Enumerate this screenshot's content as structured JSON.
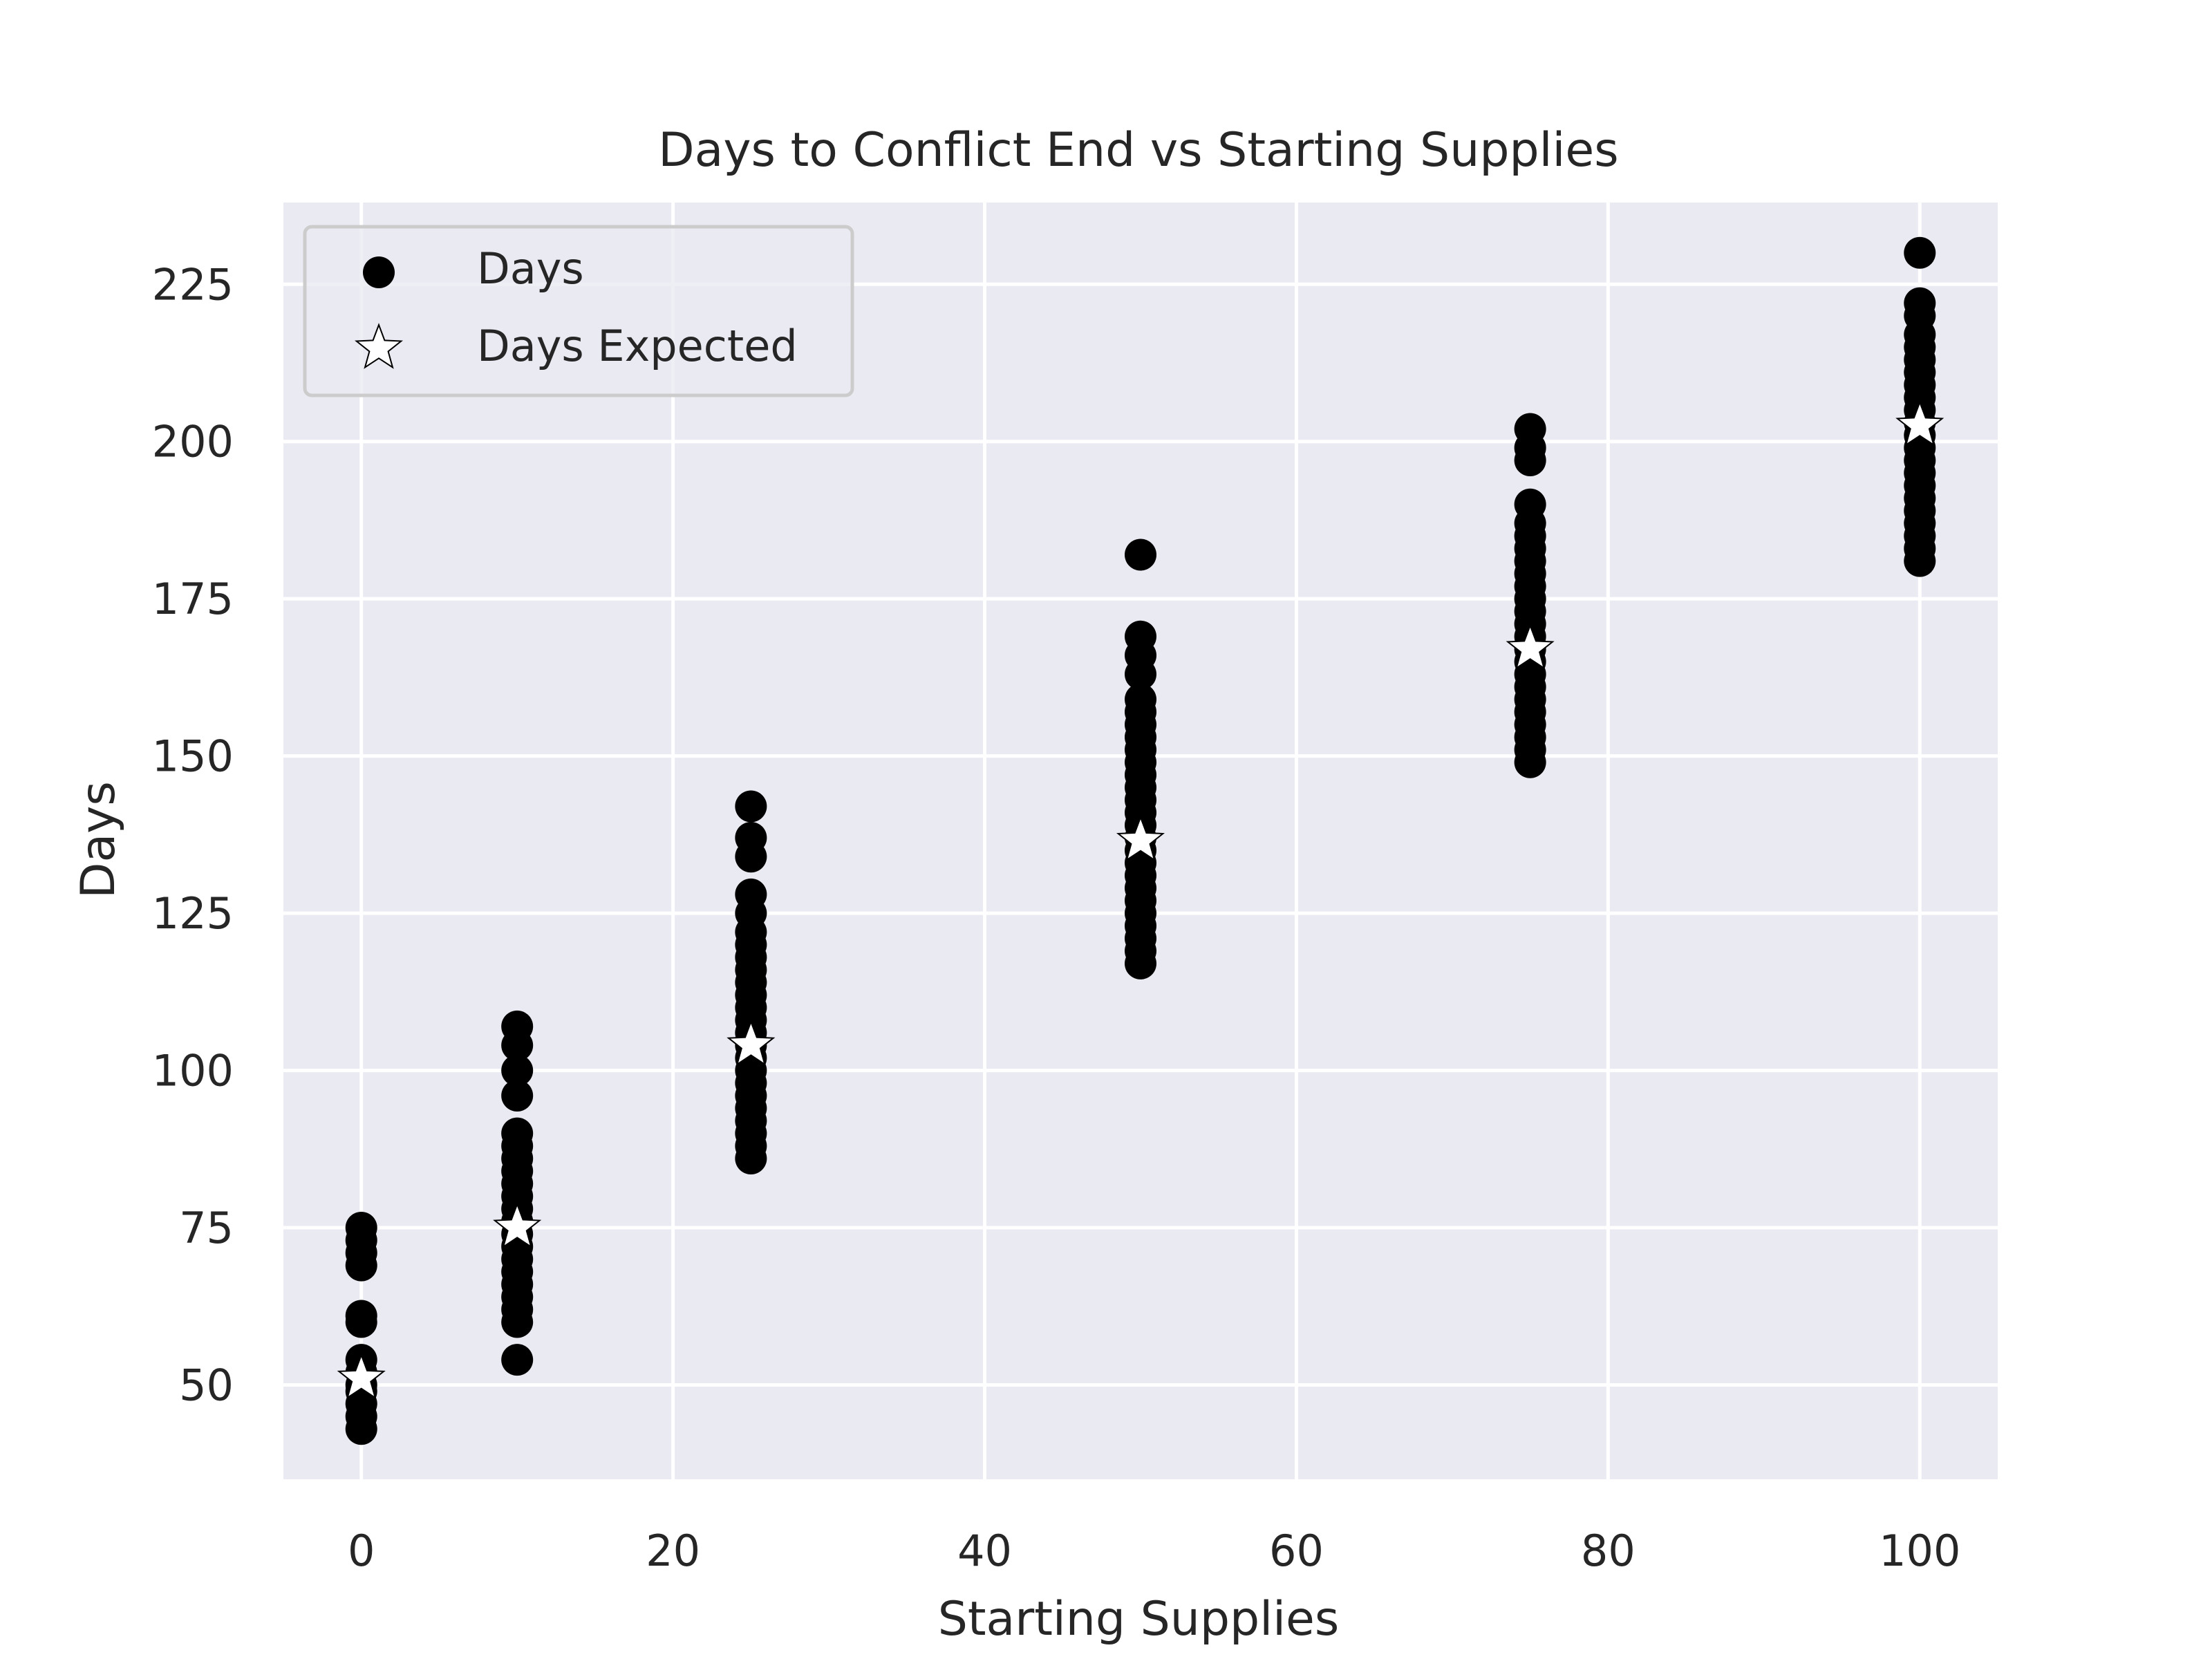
{
  "chart_data": {
    "type": "scatter",
    "title": "Days to Conflict End vs Starting Supplies",
    "xlabel": "Starting Supplies",
    "ylabel": "Days",
    "xlim": [
      -5,
      105
    ],
    "ylim": [
      35,
      238
    ],
    "x_ticks": [
      0,
      20,
      40,
      60,
      80,
      100
    ],
    "y_ticks": [
      50,
      75,
      100,
      125,
      150,
      175,
      200,
      225
    ],
    "grid": true,
    "legend_position": "top-left",
    "colors": {
      "background": "#eaeaf2",
      "grid": "#ffffff",
      "points": "#000000",
      "star_fill": "#ffffff",
      "star_edge": "#000000"
    },
    "series": [
      {
        "name": "Days",
        "marker": "circle",
        "points": [
          [
            0,
            43
          ],
          [
            0,
            45
          ],
          [
            0,
            47
          ],
          [
            0,
            49
          ],
          [
            0,
            50
          ],
          [
            0,
            52
          ],
          [
            0,
            54
          ],
          [
            0,
            60
          ],
          [
            0,
            61
          ],
          [
            0,
            69
          ],
          [
            0,
            71
          ],
          [
            0,
            73
          ],
          [
            0,
            75
          ],
          [
            10,
            54
          ],
          [
            10,
            60
          ],
          [
            10,
            62
          ],
          [
            10,
            64
          ],
          [
            10,
            66
          ],
          [
            10,
            68
          ],
          [
            10,
            70
          ],
          [
            10,
            72
          ],
          [
            10,
            74
          ],
          [
            10,
            76
          ],
          [
            10,
            78
          ],
          [
            10,
            80
          ],
          [
            10,
            82
          ],
          [
            10,
            84
          ],
          [
            10,
            86
          ],
          [
            10,
            88
          ],
          [
            10,
            90
          ],
          [
            10,
            96
          ],
          [
            10,
            100
          ],
          [
            10,
            104
          ],
          [
            10,
            107
          ],
          [
            25,
            86
          ],
          [
            25,
            88
          ],
          [
            25,
            90
          ],
          [
            25,
            92
          ],
          [
            25,
            94
          ],
          [
            25,
            96
          ],
          [
            25,
            98
          ],
          [
            25,
            100
          ],
          [
            25,
            102
          ],
          [
            25,
            104
          ],
          [
            25,
            106
          ],
          [
            25,
            108
          ],
          [
            25,
            110
          ],
          [
            25,
            112
          ],
          [
            25,
            114
          ],
          [
            25,
            116
          ],
          [
            25,
            118
          ],
          [
            25,
            120
          ],
          [
            25,
            122
          ],
          [
            25,
            125
          ],
          [
            25,
            128
          ],
          [
            25,
            134
          ],
          [
            25,
            137
          ],
          [
            25,
            142
          ],
          [
            50,
            117
          ],
          [
            50,
            119
          ],
          [
            50,
            121
          ],
          [
            50,
            123
          ],
          [
            50,
            125
          ],
          [
            50,
            127
          ],
          [
            50,
            129
          ],
          [
            50,
            131
          ],
          [
            50,
            133
          ],
          [
            50,
            135
          ],
          [
            50,
            137
          ],
          [
            50,
            139
          ],
          [
            50,
            141
          ],
          [
            50,
            143
          ],
          [
            50,
            145
          ],
          [
            50,
            147
          ],
          [
            50,
            149
          ],
          [
            50,
            151
          ],
          [
            50,
            153
          ],
          [
            50,
            155
          ],
          [
            50,
            157
          ],
          [
            50,
            159
          ],
          [
            50,
            163
          ],
          [
            50,
            166
          ],
          [
            50,
            169
          ],
          [
            50,
            182
          ],
          [
            75,
            149
          ],
          [
            75,
            151
          ],
          [
            75,
            153
          ],
          [
            75,
            155
          ],
          [
            75,
            157
          ],
          [
            75,
            159
          ],
          [
            75,
            161
          ],
          [
            75,
            163
          ],
          [
            75,
            165
          ],
          [
            75,
            167
          ],
          [
            75,
            169
          ],
          [
            75,
            171
          ],
          [
            75,
            173
          ],
          [
            75,
            175
          ],
          [
            75,
            177
          ],
          [
            75,
            179
          ],
          [
            75,
            181
          ],
          [
            75,
            183
          ],
          [
            75,
            185
          ],
          [
            75,
            187
          ],
          [
            75,
            190
          ],
          [
            75,
            197
          ],
          [
            75,
            199
          ],
          [
            75,
            202
          ],
          [
            100,
            181
          ],
          [
            100,
            183
          ],
          [
            100,
            185
          ],
          [
            100,
            187
          ],
          [
            100,
            189
          ],
          [
            100,
            191
          ],
          [
            100,
            193
          ],
          [
            100,
            195
          ],
          [
            100,
            197
          ],
          [
            100,
            199
          ],
          [
            100,
            201
          ],
          [
            100,
            203
          ],
          [
            100,
            205
          ],
          [
            100,
            207
          ],
          [
            100,
            209
          ],
          [
            100,
            211
          ],
          [
            100,
            213
          ],
          [
            100,
            215
          ],
          [
            100,
            217
          ],
          [
            100,
            220
          ],
          [
            100,
            222
          ],
          [
            100,
            230
          ]
        ]
      },
      {
        "name": "Days Expected",
        "marker": "star",
        "points": [
          [
            0,
            51
          ],
          [
            10,
            75
          ],
          [
            25,
            104
          ],
          [
            50,
            136.5
          ],
          [
            75,
            167
          ],
          [
            100,
            202.5
          ]
        ]
      }
    ]
  }
}
